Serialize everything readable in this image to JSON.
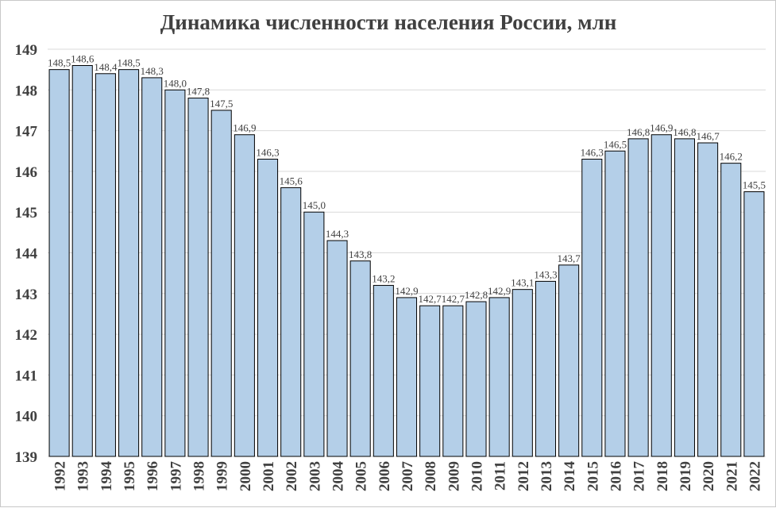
{
  "chart_data": {
    "type": "bar",
    "title": "Динамика численности населения России, млн",
    "xlabel": "",
    "ylabel": "",
    "ylim": [
      139,
      149
    ],
    "yticks": [
      139,
      140,
      141,
      142,
      143,
      144,
      145,
      146,
      147,
      148,
      149
    ],
    "grid": true,
    "categories": [
      "1992",
      "1993",
      "1994",
      "1995",
      "1996",
      "1997",
      "1998",
      "1999",
      "2000",
      "2001",
      "2002",
      "2003",
      "2004",
      "2005",
      "2006",
      "2007",
      "2008",
      "2009",
      "2010",
      "2011",
      "2012",
      "2013",
      "2014",
      "2015",
      "2016",
      "2017",
      "2018",
      "2019",
      "2020",
      "2021",
      "2022"
    ],
    "values": [
      148.5,
      148.6,
      148.4,
      148.5,
      148.3,
      148.0,
      147.8,
      147.5,
      146.9,
      146.3,
      145.6,
      145.0,
      144.3,
      143.8,
      143.2,
      142.9,
      142.7,
      142.7,
      142.8,
      142.9,
      143.1,
      143.3,
      143.7,
      146.3,
      146.5,
      146.8,
      146.9,
      146.8,
      146.7,
      146.2,
      145.5
    ],
    "labels": [
      "148,5",
      "148,6",
      "148,4",
      "148,5",
      "148,3",
      "148,0",
      "147,8",
      "147,5",
      "146,9",
      "146,3",
      "145,6",
      "145,0",
      "144,3",
      "143,8",
      "143,2",
      "142,9",
      "142,7",
      "142,7",
      "142,8",
      "142,9",
      "143,1",
      "143,3",
      "143,7",
      "146,3",
      "146,5",
      "146,8",
      "146,9",
      "146,8",
      "146,7",
      "146,2",
      "145,5"
    ],
    "colors": {
      "bar": "#b4cfe8",
      "bar_border": "#000000",
      "grid": "#d9d9d9",
      "text": "#404040"
    }
  }
}
